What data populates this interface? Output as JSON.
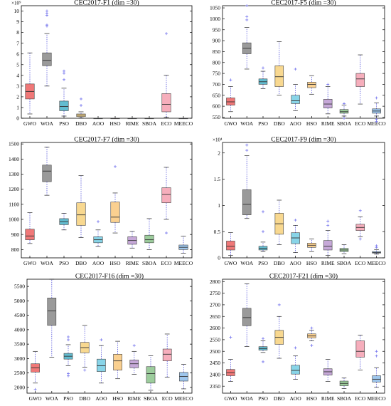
{
  "colors": {
    "GWO": "#f07878",
    "WOA": "#9a9a9a",
    "PSO": "#62bcd0",
    "DBO": "#f8d890",
    "AOO": "#88d4e8",
    "HSO": "#fad090",
    "RIME": "#c6a8d8",
    "SBOA": "#9ccc9c",
    "ECO": "#f6aebc",
    "MEECO": "#9ec6ec",
    "whisker": "#5555dd",
    "outlier": "#7777ee",
    "median": "#333333"
  },
  "chart_data": [
    {
      "type": "boxplot",
      "title": "CEC2017-F1 (dim =30)",
      "exponent_label": "×10⁹",
      "ylim": [
        0,
        10.5
      ],
      "yticks": [
        0,
        1,
        2,
        3,
        4,
        5,
        6,
        7,
        8,
        9,
        10
      ],
      "ytick_labels": [
        "0",
        "1",
        "2",
        "3",
        "4",
        "5",
        "6",
        "7",
        "8",
        "9",
        "10"
      ],
      "categories": [
        "GWO",
        "WOA",
        "PSO",
        "DBO",
        "AOO",
        "HSO",
        "RIME",
        "SBOA",
        "ECO",
        "MEECO"
      ],
      "boxes": [
        {
          "min": 0.4,
          "q1": 1.8,
          "median": 2.5,
          "q3": 3.2,
          "max": 6.1,
          "outliers": []
        },
        {
          "min": 3.0,
          "q1": 4.9,
          "median": 5.4,
          "q3": 6.1,
          "max": 7.9,
          "outliers": [
            8.6,
            8.7,
            9.6,
            9.8,
            10.0
          ]
        },
        {
          "min": 0.2,
          "q1": 0.7,
          "median": 1.1,
          "q3": 1.6,
          "max": 2.8,
          "outliers": [
            3.6,
            4.2,
            4.4
          ]
        },
        {
          "min": 0.03,
          "q1": 0.15,
          "median": 0.3,
          "q3": 0.4,
          "max": 0.6,
          "outliers": [
            1.2,
            1.8
          ]
        },
        {
          "min": 0,
          "q1": 0,
          "median": 0,
          "q3": 0,
          "max": 0,
          "outliers": []
        },
        {
          "min": 0,
          "q1": 0,
          "median": 0,
          "q3": 0,
          "max": 0,
          "outliers": []
        },
        {
          "min": 0,
          "q1": 0,
          "median": 0,
          "q3": 0,
          "max": 0,
          "outliers": []
        },
        {
          "min": 0,
          "q1": 0,
          "median": 0,
          "q3": 0,
          "max": 0,
          "outliers": []
        },
        {
          "min": 0.1,
          "q1": 0.6,
          "median": 1.3,
          "q3": 2.3,
          "max": 4.0,
          "outliers": [
            7.9
          ]
        },
        {
          "min": 0,
          "q1": 0,
          "median": 0,
          "q3": 0,
          "max": 0,
          "outliers": []
        }
      ]
    },
    {
      "type": "boxplot",
      "title": "CEC2017-F5 (dim =30)",
      "exponent_label": "",
      "ylim": [
        545,
        1060
      ],
      "yticks": [
        550,
        600,
        650,
        700,
        750,
        800,
        850,
        900,
        950,
        1000,
        1050
      ],
      "ytick_labels": [
        "550",
        "600",
        "650",
        "700",
        "750",
        "800",
        "850",
        "900",
        "950",
        "1000",
        "1050"
      ],
      "categories": [
        "GWO",
        "WOA",
        "PSO",
        "DBO",
        "AOO",
        "HSO",
        "RIME",
        "SBOA",
        "ECO",
        "MEECO"
      ],
      "boxes": [
        {
          "min": 575,
          "q1": 605,
          "median": 620,
          "q3": 638,
          "max": 690,
          "outliers": [
            720
          ]
        },
        {
          "min": 770,
          "q1": 840,
          "median": 865,
          "q3": 890,
          "max": 960,
          "outliers": [
            995,
            1010,
            1060
          ]
        },
        {
          "min": 680,
          "q1": 700,
          "median": 712,
          "q3": 725,
          "max": 760,
          "outliers": [
            775
          ]
        },
        {
          "min": 650,
          "q1": 690,
          "median": 735,
          "q3": 785,
          "max": 895,
          "outliers": []
        },
        {
          "min": 580,
          "q1": 612,
          "median": 625,
          "q3": 650,
          "max": 700,
          "outliers": [
            770
          ]
        },
        {
          "min": 655,
          "q1": 685,
          "median": 700,
          "q3": 710,
          "max": 740,
          "outliers": []
        },
        {
          "min": 565,
          "q1": 592,
          "median": 610,
          "q3": 632,
          "max": 690,
          "outliers": [
            700
          ]
        },
        {
          "min": 555,
          "q1": 568,
          "median": 575,
          "q3": 585,
          "max": 605,
          "outliers": [
            545,
            612
          ]
        },
        {
          "min": 610,
          "q1": 690,
          "median": 725,
          "q3": 750,
          "max": 835,
          "outliers": []
        },
        {
          "min": 555,
          "q1": 568,
          "median": 578,
          "q3": 588,
          "max": 615,
          "outliers": [
            530,
            540,
            638
          ]
        }
      ]
    },
    {
      "type": "boxplot",
      "title": "CEC2017-F7 (dim =30)",
      "exponent_label": "",
      "ylim": [
        745,
        1510
      ],
      "yticks": [
        800,
        900,
        1000,
        1100,
        1200,
        1300,
        1400,
        1500
      ],
      "ytick_labels": [
        "800",
        "900",
        "1000",
        "1100",
        "1200",
        "1300",
        "1400",
        "1500"
      ],
      "categories": [
        "GWO",
        "WOA",
        "PSO",
        "DBO",
        "AOO",
        "HSO",
        "RIME",
        "SBOA",
        "ECO",
        "MEECO"
      ],
      "boxes": [
        {
          "min": 840,
          "q1": 865,
          "median": 890,
          "q3": 935,
          "max": 1045,
          "outliers": []
        },
        {
          "min": 1160,
          "q1": 1250,
          "median": 1320,
          "q3": 1360,
          "max": 1480,
          "outliers": []
        },
        {
          "min": 930,
          "q1": 965,
          "median": 985,
          "q3": 1005,
          "max": 1040,
          "outliers": []
        },
        {
          "min": 880,
          "q1": 960,
          "median": 1030,
          "q3": 1110,
          "max": 1290,
          "outliers": []
        },
        {
          "min": 820,
          "q1": 845,
          "median": 865,
          "q3": 885,
          "max": 930,
          "outliers": [
            985
          ]
        },
        {
          "min": 910,
          "q1": 980,
          "median": 1015,
          "q3": 1115,
          "max": 1175,
          "outliers": [
            1350
          ]
        },
        {
          "min": 810,
          "q1": 835,
          "median": 860,
          "q3": 885,
          "max": 920,
          "outliers": []
        },
        {
          "min": 800,
          "q1": 845,
          "median": 865,
          "q3": 895,
          "max": 1005,
          "outliers": []
        },
        {
          "min": 1000,
          "q1": 1110,
          "median": 1165,
          "q3": 1210,
          "max": 1345,
          "outliers": [
            910
          ]
        },
        {
          "min": 775,
          "q1": 800,
          "median": 815,
          "q3": 830,
          "max": 890,
          "outliers": []
        }
      ]
    },
    {
      "type": "boxplot",
      "title": "CEC2017-F9 (dim =30)",
      "exponent_label": "×10⁴",
      "ylim": [
        0,
        2.2
      ],
      "yticks": [
        0,
        0.5,
        1,
        1.5,
        2
      ],
      "ytick_labels": [
        "0",
        "0.5",
        "1",
        "1.5",
        "2"
      ],
      "categories": [
        "GWO",
        "WOA",
        "PSO",
        "DBO",
        "AOO",
        "HSO",
        "RIME",
        "SBOA",
        "ECO",
        "MEECO"
      ],
      "boxes": [
        {
          "min": 0.05,
          "q1": 0.15,
          "median": 0.22,
          "q3": 0.32,
          "max": 0.48,
          "outliers": []
        },
        {
          "min": 0.75,
          "q1": 0.82,
          "median": 1.02,
          "q3": 1.3,
          "max": 1.95,
          "outliers": [
            2.05,
            2.15
          ]
        },
        {
          "min": 0.12,
          "q1": 0.15,
          "median": 0.18,
          "q3": 0.22,
          "max": 0.3,
          "outliers": [
            0.5,
            0.88
          ]
        },
        {
          "min": 0.25,
          "q1": 0.45,
          "median": 0.65,
          "q3": 0.85,
          "max": 1.1,
          "outliers": []
        },
        {
          "min": 0.1,
          "q1": 0.27,
          "median": 0.38,
          "q3": 0.48,
          "max": 0.62,
          "outliers": [
            0.72
          ]
        },
        {
          "min": 0.12,
          "q1": 0.2,
          "median": 0.24,
          "q3": 0.28,
          "max": 0.36,
          "outliers": []
        },
        {
          "min": 0.05,
          "q1": 0.15,
          "median": 0.22,
          "q3": 0.33,
          "max": 0.52,
          "outliers": [
            0.62,
            0.7
          ]
        },
        {
          "min": 0.08,
          "q1": 0.12,
          "median": 0.15,
          "q3": 0.18,
          "max": 0.25,
          "outliers": []
        },
        {
          "min": 0.4,
          "q1": 0.52,
          "median": 0.58,
          "q3": 0.64,
          "max": 0.78,
          "outliers": [
            0.36,
            0.9
          ]
        },
        {
          "min": 0.07,
          "q1": 0.09,
          "median": 0.1,
          "q3": 0.12,
          "max": 0.16,
          "outliers": [
            0.2,
            0.23
          ]
        }
      ]
    },
    {
      "type": "boxplot",
      "title": "CEC2017-F16 (dim =30)",
      "exponent_label": "",
      "ylim": [
        1800,
        5750
      ],
      "yticks": [
        2000,
        2500,
        3000,
        3500,
        4000,
        4500,
        5000,
        5500
      ],
      "ytick_labels": [
        "2000",
        "2500",
        "3000",
        "3500",
        "4000",
        "4500",
        "5000",
        "5500"
      ],
      "categories": [
        "GWO",
        "WOA",
        "PSO",
        "DBO",
        "AOO",
        "HSO",
        "RIME",
        "SBOA",
        "ECO",
        "MEECO"
      ],
      "boxes": [
        {
          "min": 2150,
          "q1": 2530,
          "median": 2680,
          "q3": 2820,
          "max": 3250,
          "outliers": [
            1930
          ]
        },
        {
          "min": 3050,
          "q1": 4150,
          "median": 4650,
          "q3": 5100,
          "max": 5750,
          "outliers": []
        },
        {
          "min": 2750,
          "q1": 2980,
          "median": 3080,
          "q3": 3180,
          "max": 3480,
          "outliers": [
            2400,
            2480,
            3650,
            3750
          ]
        },
        {
          "min": 2700,
          "q1": 3200,
          "median": 3380,
          "q3": 3560,
          "max": 4150,
          "outliers": [
            2600
          ]
        },
        {
          "min": 2150,
          "q1": 2550,
          "median": 2750,
          "q3": 2980,
          "max": 3450,
          "outliers": [
            3650
          ]
        },
        {
          "min": 2300,
          "q1": 2600,
          "median": 2920,
          "q3": 3150,
          "max": 3600,
          "outliers": []
        },
        {
          "min": 2450,
          "q1": 2680,
          "median": 2820,
          "q3": 2950,
          "max": 3250,
          "outliers": [
            3450
          ]
        },
        {
          "min": 1900,
          "q1": 2150,
          "median": 2480,
          "q3": 2720,
          "max": 3100,
          "outliers": []
        },
        {
          "min": 2350,
          "q1": 2920,
          "median": 3150,
          "q3": 3330,
          "max": 3850,
          "outliers": []
        },
        {
          "min": 1950,
          "q1": 2220,
          "median": 2380,
          "q3": 2520,
          "max": 2800,
          "outliers": []
        }
      ]
    },
    {
      "type": "boxplot",
      "title": "CEC2017-F21 (dim =30)",
      "exponent_label": "",
      "ylim": [
        2320,
        2810
      ],
      "yticks": [
        2350,
        2400,
        2450,
        2500,
        2550,
        2600,
        2650,
        2700,
        2750,
        2800
      ],
      "ytick_labels": [
        "2350",
        "2400",
        "2450",
        "2500",
        "2550",
        "2600",
        "2650",
        "2700",
        "2750",
        "2800"
      ],
      "categories": [
        "GWO",
        "WOA",
        "PSO",
        "DBO",
        "AOO",
        "HSO",
        "RIME",
        "SBOA",
        "ECO",
        "MEECO"
      ],
      "boxes": [
        {
          "min": 2370,
          "q1": 2395,
          "median": 2408,
          "q3": 2422,
          "max": 2465,
          "outliers": [
            2560
          ]
        },
        {
          "min": 2520,
          "q1": 2610,
          "median": 2645,
          "q3": 2685,
          "max": 2790,
          "outliers": []
        },
        {
          "min": 2495,
          "q1": 2505,
          "median": 2512,
          "q3": 2520,
          "max": 2545,
          "outliers": [
            2455,
            2555
          ]
        },
        {
          "min": 2470,
          "q1": 2530,
          "median": 2560,
          "q3": 2590,
          "max": 2650,
          "outliers": [
            2700
          ]
        },
        {
          "min": 2380,
          "q1": 2402,
          "median": 2418,
          "q3": 2440,
          "max": 2480,
          "outliers": [
            2515
          ]
        },
        {
          "min": 2545,
          "q1": 2558,
          "median": 2566,
          "q3": 2575,
          "max": 2590,
          "outliers": [
            2525,
            2600
          ]
        },
        {
          "min": 2370,
          "q1": 2398,
          "median": 2412,
          "q3": 2425,
          "max": 2465,
          "outliers": []
        },
        {
          "min": 2340,
          "q1": 2352,
          "median": 2362,
          "q3": 2372,
          "max": 2385,
          "outliers": []
        },
        {
          "min": 2420,
          "q1": 2475,
          "median": 2500,
          "q3": 2545,
          "max": 2570,
          "outliers": []
        },
        {
          "min": 2345,
          "q1": 2368,
          "median": 2380,
          "q3": 2395,
          "max": 2430,
          "outliers": [
            2480,
            2500
          ]
        }
      ]
    }
  ]
}
